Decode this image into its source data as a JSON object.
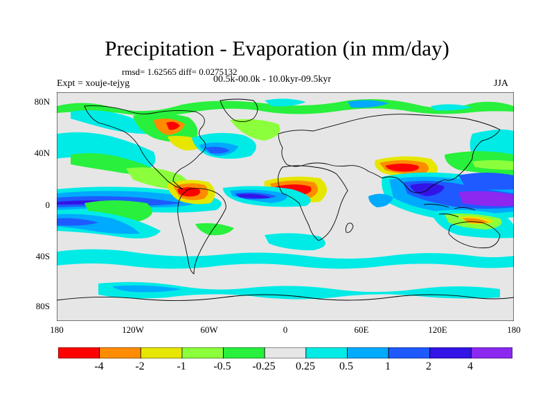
{
  "title": "Precipitation - Evaporation (in mm/day)",
  "stats": "rmsd= 1.62565 diff= 0.0275132",
  "experiment": "Expt = xouje-tejyg",
  "period": "00.5k-00.0k - 10.0kyr-09.5kyr",
  "season": "JJA",
  "y_ticks": [
    "80N",
    "40N",
    "0",
    "40S",
    "80S"
  ],
  "x_ticks": [
    "180",
    "120W",
    "60W",
    "0",
    "60E",
    "120E",
    "180"
  ],
  "colorbar": {
    "labels": [
      "-4",
      "-2",
      "-1",
      "-0.5",
      "-0.25",
      "0.25",
      "0.5",
      "1",
      "2",
      "4"
    ],
    "colors": [
      "#ff0000",
      "#ff8c00",
      "#e6e600",
      "#8cff3c",
      "#28f03c",
      "#e6e6e6",
      "#00ebe6",
      "#00aaff",
      "#1e5aff",
      "#3214e6",
      "#8c28f0"
    ]
  }
}
